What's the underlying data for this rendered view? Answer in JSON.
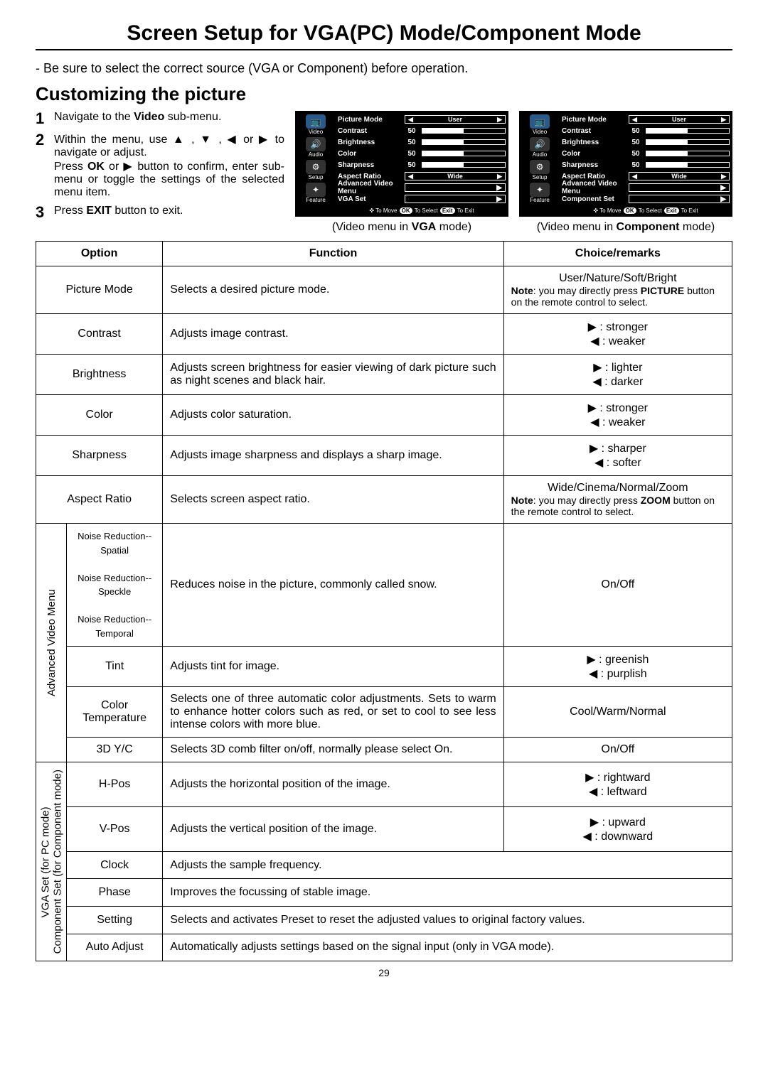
{
  "page": {
    "title": "Screen Setup for VGA(PC) Mode/Component Mode",
    "intro": "- Be sure to select the correct source (VGA or Component) before operation.",
    "section": "Customizing the picture",
    "pageNumber": "29"
  },
  "steps": {
    "s1": {
      "num": "1",
      "body_pre": "Navigate to the ",
      "bold": "Video",
      "body_post": " sub-menu."
    },
    "s2": {
      "num": "2",
      "body": "Within the menu, use ▲ , ▼ , ◀ or ▶ to navigate or adjust.",
      "line2_pre": "Press ",
      "line2_b1": "OK",
      "line2_mid": " or ▶ button to confirm, enter sub-menu or toggle the settings of the selected menu item."
    },
    "s3": {
      "num": "3",
      "body_pre": "Press ",
      "bold": "EXIT",
      "body_post": " button to exit."
    }
  },
  "osd": {
    "side": [
      {
        "label": "Video",
        "icon": "📺",
        "sel": true
      },
      {
        "label": "Audio",
        "icon": "🔊"
      },
      {
        "label": "Setup",
        "icon": "⚙"
      },
      {
        "label": "Feature",
        "icon": "✦"
      }
    ],
    "rows_common": [
      {
        "label": "Picture Mode",
        "type": "box",
        "val": "User"
      },
      {
        "label": "Contrast",
        "type": "bar",
        "val": "50"
      },
      {
        "label": "Brightness",
        "type": "bar",
        "val": "50"
      },
      {
        "label": "Color",
        "type": "bar",
        "val": "50"
      },
      {
        "label": "Sharpness",
        "type": "bar",
        "val": "50"
      },
      {
        "label": "Aspect Ratio",
        "type": "box",
        "val": "Wide"
      },
      {
        "label": "Advanced Video Menu",
        "type": "arrow"
      }
    ],
    "vga_row": {
      "label": "VGA Set",
      "type": "arrow"
    },
    "comp_row": {
      "label": "Component Set",
      "type": "arrow"
    },
    "footer_move": "To Move",
    "footer_ok": "OK",
    "footer_sel": "To Select",
    "footer_exit": "Exit",
    "footer_toexit": "To Exit",
    "caption_vga_pre": "(Video menu in ",
    "caption_vga_b": "VGA",
    "caption_vga_post": " mode)",
    "caption_comp_pre": "(Video menu in ",
    "caption_comp_b": "Component",
    "caption_comp_post": " mode)"
  },
  "table": {
    "h1": "Option",
    "h2": "Function",
    "h3": "Choice/remarks",
    "pictureMode": {
      "opt": "Picture Mode",
      "func": "Selects a desired picture mode.",
      "rem_line1": "User/Nature/Soft/Bright",
      "rem_note_b": "Note",
      "rem_note": ": you may directly press ",
      "rem_note_b2": "PICTURE",
      "rem_note2": " button on the remote control to select."
    },
    "contrast": {
      "opt": "Contrast",
      "func": "Adjusts image contrast.",
      "rem1": "▶ : stronger",
      "rem2": "◀ : weaker"
    },
    "brightness": {
      "opt": "Brightness",
      "func": "Adjusts screen brightness for easier viewing of dark picture such as night scenes and black hair.",
      "rem1": "▶ : lighter",
      "rem2": "◀ : darker"
    },
    "color": {
      "opt": "Color",
      "func": "Adjusts color saturation.",
      "rem1": "▶ : stronger",
      "rem2": "◀ : weaker"
    },
    "sharpness": {
      "opt": "Sharpness",
      "func": "Adjusts image sharpness and displays a sharp image.",
      "rem1": "▶ : sharper",
      "rem2": "◀ : softer"
    },
    "aspect": {
      "opt": "Aspect Ratio",
      "func": "Selects screen aspect ratio.",
      "rem_line1": "Wide/Cinema/Normal/Zoom",
      "rem_note_b": "Note",
      "rem_note": ": you may directly press ",
      "rem_note_b2": "ZOOM",
      "rem_note2": " button on the remote control to select."
    },
    "avm_label": "Advanced Video Menu",
    "noise": {
      "opt1": "Noise Reduction--Spatial",
      "opt2": "Noise Reduction--Speckle",
      "opt3": "Noise Reduction--Temporal",
      "func": "Reduces noise in the picture, commonly called snow.",
      "rem": "On/Off"
    },
    "tint": {
      "opt": "Tint",
      "func": "Adjusts tint for image.",
      "rem1": "▶ : greenish",
      "rem2": "◀ : purplish"
    },
    "colortemp": {
      "opt": "Color Temperature",
      "func": "Selects one of three automatic color adjustments. Sets to warm to enhance hotter colors such as red, or set to cool to see less intense colors with more blue.",
      "rem": "Cool/Warm/Normal"
    },
    "yc": {
      "opt": "3D Y/C",
      "func": "Selects 3D comb filter on/off, normally please select On.",
      "rem": "On/Off"
    },
    "vga_label_l1": "VGA Set (for PC mode)",
    "vga_label_l2": "Component Set (for Component mode)",
    "hpos": {
      "opt": "H-Pos",
      "func": "Adjusts the horizontal position of the image.",
      "rem1": "▶ : rightward",
      "rem2": "◀ : leftward"
    },
    "vpos": {
      "opt": "V-Pos",
      "func": "Adjusts the vertical position of the image.",
      "rem1": "▶ : upward",
      "rem2": "◀ : downward"
    },
    "clock": {
      "opt": "Clock",
      "func": "Adjusts the sample frequency."
    },
    "phase": {
      "opt": "Phase",
      "func": "Improves the focussing of stable image."
    },
    "setting": {
      "opt": "Setting",
      "func": "Selects and activates Preset to reset the adjusted values to original factory values."
    },
    "auto": {
      "opt": "Auto Adjust",
      "func": "Automatically adjusts settings based on the signal input (only in VGA mode)."
    }
  }
}
